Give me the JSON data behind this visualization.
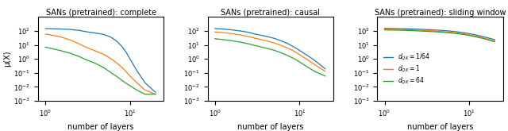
{
  "titles": [
    "SANs (pretrained): complete",
    "SANs (pretrained): causal",
    "SANs (pretrained): sliding window"
  ],
  "xlabel": "number of layers",
  "ylabel": "μ(X)",
  "colors": [
    "#1f77b4",
    "#ff7f0e",
    "#2ca02c"
  ],
  "legend_labels": [
    "$d_{QK} = 1/64$",
    "$d_{QK} = 1$",
    "$d_{QK} = 64$"
  ],
  "n_layers": [
    1,
    1.2,
    1.5,
    2,
    2.5,
    3,
    4,
    5,
    6,
    7,
    8,
    9,
    10,
    12,
    15,
    20
  ],
  "complete": {
    "blue": [
      150,
      145,
      140,
      130,
      110,
      90,
      70,
      55,
      35,
      18,
      8,
      3,
      1.0,
      0.15,
      0.02,
      0.004
    ],
    "orange": [
      60,
      50,
      38,
      22,
      12,
      7,
      3.5,
      2.0,
      1.0,
      0.5,
      0.25,
      0.12,
      0.06,
      0.02,
      0.006,
      0.003
    ],
    "green": [
      7,
      5.5,
      4,
      2.5,
      1.5,
      0.9,
      0.45,
      0.22,
      0.1,
      0.055,
      0.03,
      0.018,
      0.012,
      0.006,
      0.003,
      0.003
    ]
  },
  "causal": {
    "blue": [
      150,
      140,
      125,
      100,
      80,
      60,
      42,
      30,
      20,
      14,
      9,
      6,
      4,
      2,
      0.8,
      0.2
    ],
    "orange": [
      85,
      78,
      68,
      52,
      40,
      30,
      20,
      14,
      9.5,
      6.5,
      4.5,
      3,
      2,
      1.0,
      0.4,
      0.13
    ],
    "green": [
      28,
      25,
      21,
      16,
      12,
      9,
      6,
      4.2,
      2.8,
      1.9,
      1.3,
      0.9,
      0.6,
      0.3,
      0.13,
      0.06
    ]
  },
  "sliding": {
    "blue": [
      155,
      152,
      148,
      142,
      136,
      128,
      118,
      108,
      98,
      89,
      80,
      72,
      65,
      52,
      38,
      24
    ],
    "orange": [
      135,
      132,
      128,
      122,
      115,
      108,
      99,
      90,
      82,
      74,
      67,
      60,
      54,
      43,
      31,
      19
    ],
    "green": [
      120,
      117,
      114,
      108,
      102,
      96,
      88,
      80,
      73,
      66,
      60,
      54,
      48,
      38,
      28,
      17
    ]
  }
}
